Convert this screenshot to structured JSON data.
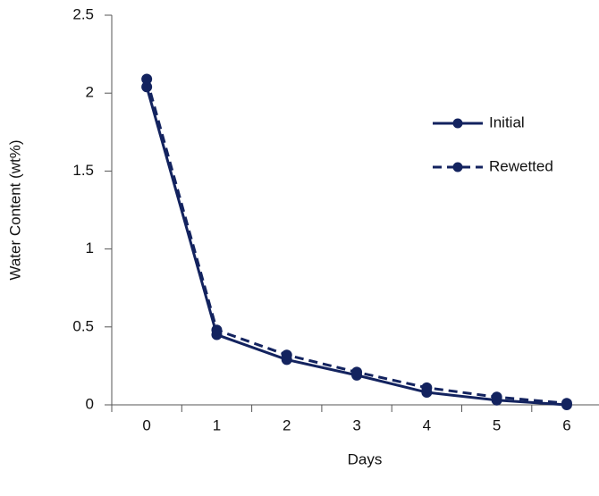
{
  "chart_data": {
    "type": "line",
    "x_label": "Days",
    "y_label": "Water Content (wt%)",
    "categories": [
      "0",
      "1",
      "2",
      "3",
      "4",
      "5",
      "6"
    ],
    "series": [
      {
        "name": "Initial",
        "color": "#13235f",
        "dash": false,
        "values": [
          2.04,
          0.45,
          0.29,
          0.19,
          0.08,
          0.03,
          0.0
        ]
      },
      {
        "name": "Rewetted",
        "color": "#13235f",
        "dash": true,
        "values": [
          2.09,
          0.48,
          0.32,
          0.21,
          0.11,
          0.05,
          0.01
        ]
      }
    ],
    "ylim": [
      0,
      2.5
    ],
    "yticks": [
      0,
      0.5,
      1,
      1.5,
      2,
      2.5
    ],
    "legend": "right"
  }
}
